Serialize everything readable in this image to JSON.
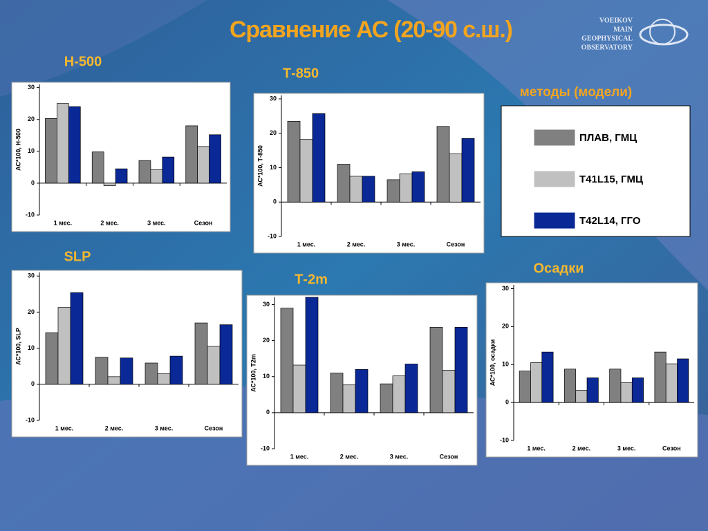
{
  "title": "Сравнение АС (20-90 с.ш.)",
  "logo": [
    "VOEIKOV",
    "MAIN",
    "GEOPHYSICAL",
    "OBSERVATORY"
  ],
  "legend": {
    "title": "методы (модели)",
    "series": [
      {
        "name": "ПЛАВ, ГМЦ",
        "color": "#808080"
      },
      {
        "name": "T41L15, ГМЦ",
        "color": "#c0c0c0"
      },
      {
        "name": "T42L14, ГГО",
        "color": "#0a2896"
      }
    ]
  },
  "chart_data": [
    {
      "type": "bar",
      "title": "Н-500",
      "ylabel": "АС*100,  Н-500",
      "categories": [
        "1 мес.",
        "2 мес.",
        "3 мес.",
        "Сезон"
      ],
      "series": [
        {
          "values": [
            20.3,
            9.8,
            7.1,
            18
          ]
        },
        {
          "values": [
            25,
            -0.8,
            4.2,
            11.5
          ]
        },
        {
          "values": [
            24,
            4.5,
            8.2,
            15.2
          ]
        }
      ],
      "ylim": [
        -10,
        31
      ],
      "yticks": [
        -10,
        0,
        10,
        20,
        30
      ]
    },
    {
      "type": "bar",
      "title": "Т-850",
      "ylabel": "АС*100,  Т-850",
      "categories": [
        "1 мес.",
        "2 мес.",
        "3 мес.",
        "Сезон"
      ],
      "series": [
        {
          "values": [
            23.5,
            11,
            6.5,
            22
          ]
        },
        {
          "values": [
            18.2,
            7.5,
            8.2,
            14
          ]
        },
        {
          "values": [
            25.7,
            7.5,
            8.8,
            18.5
          ]
        }
      ],
      "ylim": [
        -10,
        31
      ],
      "yticks": [
        -10,
        0,
        10,
        20,
        30
      ]
    },
    {
      "type": "bar",
      "title": "SLP",
      "ylabel": "АС*100,  SLP",
      "categories": [
        "1 мес.",
        "2 мес.",
        "3 мес.",
        "Сезон"
      ],
      "series": [
        {
          "values": [
            14.3,
            7.5,
            5.9,
            17
          ]
        },
        {
          "values": [
            21.3,
            2.1,
            2.9,
            10.5
          ]
        },
        {
          "values": [
            25.4,
            7.3,
            7.8,
            16.5
          ]
        }
      ],
      "ylim": [
        -10,
        31
      ],
      "yticks": [
        -10,
        0,
        10,
        20,
        30
      ]
    },
    {
      "type": "bar",
      "title": "Т-2m",
      "ylabel": "АС*100, Т2m",
      "categories": [
        "1 мес.",
        "2 мес.",
        "3 мес.",
        "Сезон"
      ],
      "series": [
        {
          "values": [
            29,
            11,
            8,
            23.7
          ]
        },
        {
          "values": [
            13.2,
            7.7,
            10.2,
            11.8
          ]
        },
        {
          "values": [
            32,
            12,
            13.5,
            23.7
          ]
        }
      ],
      "ylim": [
        -10,
        32
      ],
      "yticks": [
        -10,
        0,
        10,
        20,
        30
      ]
    },
    {
      "type": "bar",
      "title": "Осадки",
      "ylabel": "АС*100, осадки",
      "categories": [
        "1 мес.",
        "2 мес.",
        "3 мес.",
        "Сезон"
      ],
      "series": [
        {
          "values": [
            8.3,
            8.8,
            8.8,
            13.3
          ]
        },
        {
          "values": [
            10.5,
            3.2,
            5.2,
            10.2
          ]
        },
        {
          "values": [
            13.3,
            6.5,
            6.5,
            11.5
          ]
        }
      ],
      "ylim": [
        -10,
        31
      ],
      "yticks": [
        -10,
        0,
        10,
        20,
        30
      ]
    }
  ]
}
